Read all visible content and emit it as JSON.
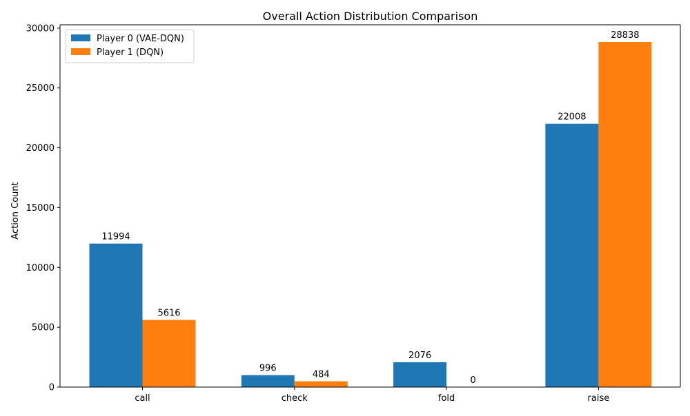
{
  "chart_data": {
    "type": "bar",
    "title": "Overall Action Distribution Comparison",
    "xlabel": "",
    "ylabel": "Action Count",
    "categories": [
      "call",
      "check",
      "fold",
      "raise"
    ],
    "series": [
      {
        "name": "Player 0 (VAE-DQN)",
        "values": [
          11994,
          996,
          2076,
          22008
        ],
        "color": "#1f77b4"
      },
      {
        "name": "Player 1 (DQN)",
        "values": [
          5616,
          484,
          0,
          28838
        ],
        "color": "#ff7f0e"
      }
    ],
    "ylim": [
      0,
      30280
    ],
    "yticks": [
      0,
      5000,
      10000,
      15000,
      20000,
      25000,
      30000
    ],
    "grid": false,
    "legend_position": "top-left"
  }
}
